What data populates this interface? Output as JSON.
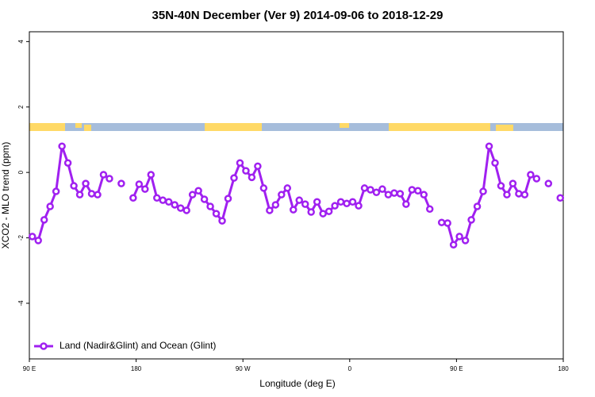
{
  "chart_data": {
    "type": "line",
    "title": "35N-40N December (Ver 9)   2014-09-06 to 2018-12-29",
    "xlabel": "Longitude (deg E)",
    "ylabel": "XCO2 - MLO trend (ppm)",
    "x": [
      92.5,
      97.5,
      102.5,
      107.5,
      112.5,
      117.5,
      122.5,
      127.5,
      132.5,
      137.5,
      142.5,
      147.5,
      152.5,
      157.5,
      162.5,
      167.5,
      172.5,
      177.5,
      182.5,
      187.5,
      192.5,
      197.5,
      202.5,
      207.5,
      212.5,
      217.5,
      222.5,
      227.5,
      232.5,
      237.5,
      242.5,
      247.5,
      252.5,
      257.5,
      262.5,
      267.5,
      272.5,
      277.5,
      282.5,
      287.5,
      292.5,
      297.5,
      302.5,
      307.5,
      312.5,
      317.5,
      322.5,
      327.5,
      332.5,
      337.5,
      342.5,
      347.5,
      352.5,
      357.5,
      362.5,
      367.5,
      372.5,
      377.5,
      382.5,
      387.5,
      392.5,
      397.5,
      402.5,
      407.5,
      412.5,
      417.5,
      422.5,
      427.5,
      432.5,
      437.5,
      442.5,
      447.5,
      452.5,
      457.5,
      462.5,
      467.5,
      472.5,
      477.5,
      482.5,
      487.5,
      492.5,
      497.5,
      502.5,
      507.5,
      512.5,
      517.5,
      522.5,
      527.5,
      532.5,
      537.5
    ],
    "series": [
      {
        "name": "Land (Nadir&Glint) and Ocean (Glint)",
        "color": "#a020f0",
        "values": [
          -1.96,
          -2.08,
          -1.45,
          -1.04,
          -0.58,
          0.8,
          0.29,
          -0.41,
          -0.68,
          -0.34,
          -0.65,
          -0.68,
          -0.07,
          -0.19,
          null,
          -0.34,
          null,
          -0.78,
          -0.36,
          -0.51,
          -0.07,
          -0.78,
          -0.85,
          -0.9,
          -0.99,
          -1.09,
          -1.16,
          -0.68,
          -0.56,
          -0.82,
          -1.04,
          -1.26,
          -1.48,
          -0.8,
          -0.17,
          0.29,
          0.05,
          -0.15,
          0.19,
          -0.48,
          -1.16,
          -0.99,
          -0.68,
          -0.48,
          -1.14,
          -0.85,
          -0.97,
          -1.21,
          -0.9,
          -1.26,
          -1.19,
          -1.02,
          -0.9,
          -0.95,
          -0.9,
          -1.02,
          -0.48,
          -0.53,
          -0.61,
          -0.51,
          -0.68,
          -0.63,
          -0.65,
          -0.97,
          -0.53,
          -0.56,
          -0.68,
          -1.12,
          null,
          -1.53,
          -1.55,
          -2.21,
          -1.96,
          -2.08,
          -1.45,
          -1.04,
          -0.58,
          0.8,
          0.29,
          -0.41,
          -0.68,
          -0.34,
          -0.65,
          -0.68,
          -0.07,
          -0.19,
          null,
          -0.34,
          null,
          -0.78
        ]
      }
    ],
    "xlim": [
      90,
      540
    ],
    "xticks": [
      {
        "value": 90,
        "label": "90 E"
      },
      180,
      {
        "value": 270,
        "label": "90 W"
      },
      {
        "value": 360,
        "label": "0"
      },
      {
        "value": 450,
        "label": "90 E"
      },
      {
        "value": 540,
        "label": "180"
      }
    ],
    "ylim": [
      -5.7,
      4.3
    ],
    "yticks": [
      4,
      2,
      0,
      -2,
      -4
    ],
    "legend": "bottom-left"
  }
}
